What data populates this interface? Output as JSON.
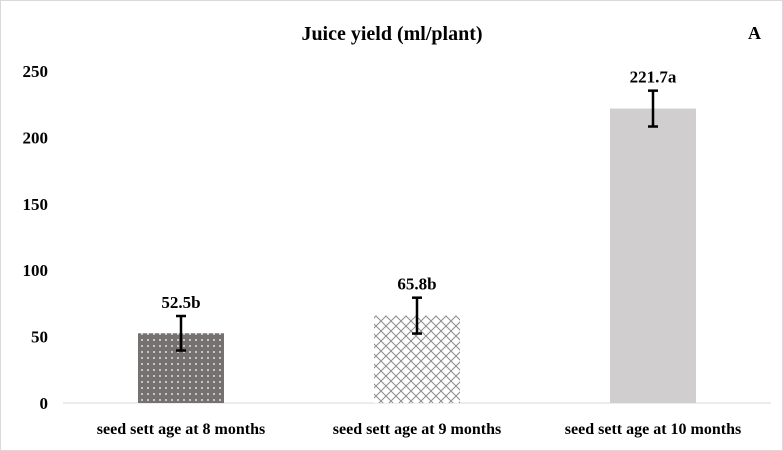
{
  "panel_label": "A",
  "chart_data": {
    "type": "bar",
    "title": "Juice yield (ml/plant)",
    "categories": [
      "seed sett age at 8 months",
      "seed sett age at 9 months",
      "seed sett age at 10 months"
    ],
    "values": [
      52.5,
      65.8,
      221.7
    ],
    "errors": [
      13,
      13.5,
      13.5
    ],
    "data_labels": [
      "52.5b",
      "65.8b",
      "221.7a"
    ],
    "xlabel": "",
    "ylabel": "",
    "ylim": [
      0,
      250
    ],
    "yticks": [
      0,
      50,
      100,
      150,
      200,
      250
    ],
    "grid": false,
    "legend": "none",
    "bar_fills": [
      "dotted-dark",
      "crosshatch-light",
      "solid-light-gray"
    ],
    "colors": {
      "bar_dark": "#767171",
      "bar_light": "#d0cece",
      "axis": "#d9d9d9",
      "error_bar": "#000000"
    }
  }
}
